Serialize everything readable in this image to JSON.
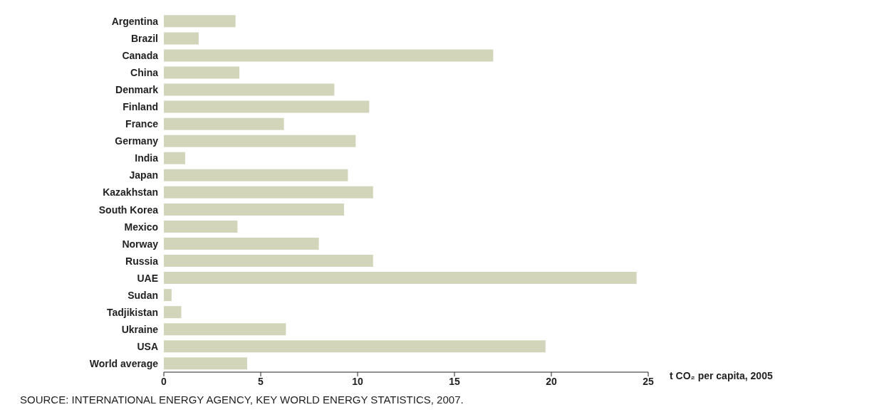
{
  "chart_data": {
    "type": "bar",
    "orientation": "horizontal",
    "xlabel": "t CO₂ per capita, 2005",
    "categories": [
      "Argentina",
      "Brazil",
      "Canada",
      "China",
      "Denmark",
      "Finland",
      "France",
      "Germany",
      "India",
      "Japan",
      "Kazakhstan",
      "South Korea",
      "Mexico",
      "Norway",
      "Russia",
      "UAE",
      "Sudan",
      "Tadjikistan",
      "Ukraine",
      "USA",
      "World average"
    ],
    "values": [
      3.7,
      1.8,
      17.0,
      3.9,
      8.8,
      10.6,
      6.2,
      9.9,
      1.1,
      9.5,
      10.8,
      9.3,
      3.8,
      8.0,
      10.8,
      24.4,
      0.4,
      0.9,
      6.3,
      19.7,
      4.3
    ],
    "color": "#d3d5bb",
    "xlim": [
      0,
      25
    ],
    "xticks": [
      0,
      5,
      10,
      15,
      20,
      25
    ],
    "grid": false,
    "legend": false,
    "annotations": [
      "SOURCE: INTERNATIONAL ENERGY AGENCY, KEY WORLD ENERGY STATISTICS, 2007."
    ]
  }
}
